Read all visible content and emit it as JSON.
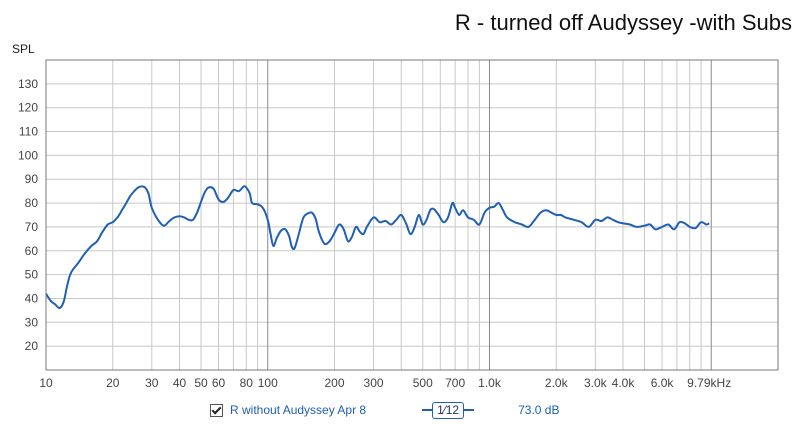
{
  "chart_data": {
    "type": "line",
    "title": "R - turned off Audyssey -with Subs",
    "ylabel": "SPL",
    "xlabel": "",
    "x_scale": "log",
    "xlim": [
      10,
      20000
    ],
    "ylim": [
      10,
      140
    ],
    "x_ticks": [
      {
        "value": 10,
        "label": "10"
      },
      {
        "value": 20,
        "label": "20"
      },
      {
        "value": 30,
        "label": "30"
      },
      {
        "value": 40,
        "label": "40"
      },
      {
        "value": 50,
        "label": "50"
      },
      {
        "value": 60,
        "label": "60"
      },
      {
        "value": 80,
        "label": "80"
      },
      {
        "value": 100,
        "label": "100"
      },
      {
        "value": 200,
        "label": "200"
      },
      {
        "value": 300,
        "label": "300"
      },
      {
        "value": 500,
        "label": "500"
      },
      {
        "value": 700,
        "label": "700"
      },
      {
        "value": 1000,
        "label": "1.0k"
      },
      {
        "value": 2000,
        "label": "2.0k"
      },
      {
        "value": 3000,
        "label": "3.0k"
      },
      {
        "value": 4000,
        "label": "4.0k"
      },
      {
        "value": 6000,
        "label": "6.0k"
      },
      {
        "value": 9790,
        "label": "9.79kHz"
      }
    ],
    "y_ticks": [
      20,
      30,
      40,
      50,
      60,
      70,
      80,
      90,
      100,
      110,
      120,
      130
    ],
    "grid": true,
    "series": [
      {
        "name": "R without Audyssey Apr 8",
        "color": "#1f5fb4",
        "x": [
          10,
          10.5,
          11,
          11.5,
          12,
          12.5,
          13,
          14,
          15,
          16,
          17,
          18,
          19,
          20,
          21,
          22,
          23,
          24,
          25,
          26,
          27,
          28,
          29,
          30,
          32,
          34,
          36,
          38,
          40,
          42,
          44,
          46,
          48,
          50,
          52,
          54,
          57,
          60,
          63,
          66,
          70,
          74,
          78,
          80,
          83,
          85,
          90,
          95,
          100,
          103,
          106,
          110,
          115,
          120,
          125,
          128,
          132,
          138,
          145,
          155,
          160,
          165,
          170,
          180,
          190,
          200,
          210,
          220,
          230,
          240,
          250,
          260,
          270,
          280,
          300,
          320,
          340,
          360,
          380,
          400,
          420,
          440,
          460,
          480,
          500,
          520,
          540,
          560,
          590,
          620,
          650,
          680,
          700,
          730,
          760,
          800,
          850,
          900,
          950,
          1000,
          1050,
          1100,
          1150,
          1200,
          1300,
          1400,
          1500,
          1600,
          1700,
          1800,
          1900,
          2000,
          2100,
          2200,
          2400,
          2600,
          2800,
          3000,
          3200,
          3400,
          3600,
          3800,
          4000,
          4300,
          4600,
          5000,
          5300,
          5600,
          6000,
          6400,
          6800,
          7200,
          7600,
          8000,
          8500,
          9000,
          9500,
          9790
        ],
        "y": [
          42,
          39,
          37.5,
          36,
          38.5,
          46,
          51,
          55,
          59,
          62,
          64,
          68,
          71,
          72,
          74,
          77,
          80,
          83,
          85,
          86.5,
          87,
          86.5,
          84,
          78,
          73,
          70.5,
          72.5,
          74,
          74.5,
          74,
          73,
          73,
          76,
          80.5,
          84.5,
          86.5,
          86,
          81.5,
          80.5,
          82,
          85.5,
          85,
          87,
          86.5,
          84,
          80,
          79.5,
          78,
          73,
          67,
          62,
          65.5,
          68.5,
          69,
          66,
          62,
          61,
          67,
          74,
          76,
          75.5,
          73,
          68,
          63,
          64,
          67.5,
          71,
          69,
          64,
          66,
          70,
          68,
          67,
          70,
          74,
          72,
          72.5,
          71,
          73,
          75,
          71.5,
          67,
          70,
          75,
          71,
          73,
          77,
          77.5,
          75,
          72,
          74,
          80,
          78,
          75,
          77,
          74,
          73,
          71,
          76,
          78,
          78.5,
          80,
          77,
          74,
          72,
          71,
          70,
          73,
          76,
          77,
          76,
          75,
          75,
          74,
          73,
          72,
          70,
          73,
          72.5,
          74,
          73,
          72,
          71.5,
          71,
          70,
          70.5,
          71,
          69,
          70,
          71,
          69,
          72,
          71.5,
          70,
          69.5,
          72,
          71,
          71.5
        ]
      }
    ]
  },
  "legend": {
    "checkbox_checked": true,
    "series_label": "R without Audyssey Apr 8",
    "smoothing_label": "1⁄12",
    "level_value": "73.0 dB"
  },
  "colors": {
    "curve": "#1f5fb4",
    "grid": "#c8c8c8",
    "major_grid": "#8a8a8a",
    "frame": "#7a7a7a"
  }
}
